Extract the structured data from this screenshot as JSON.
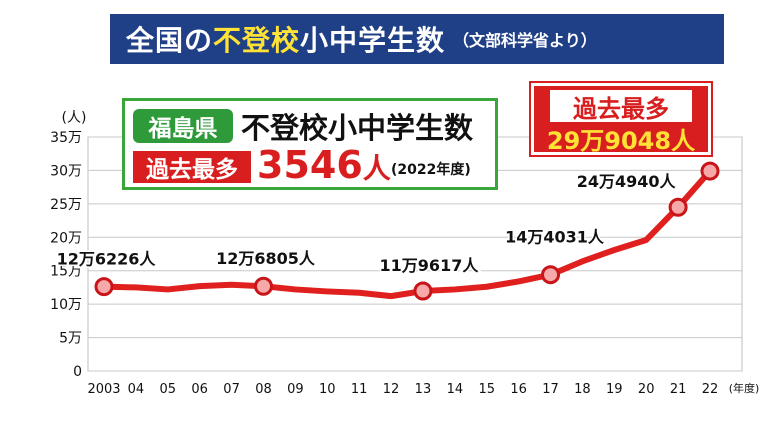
{
  "title": {
    "part1": "全国の",
    "part2": "不登校",
    "part3": "小中学生数",
    "source": "（文部科学省より）"
  },
  "info_box": {
    "prefecture": "福島県",
    "metric": "不登校小中学生数",
    "record_label": "過去最多",
    "record_number": "3546",
    "record_unit": "人",
    "record_year": "(2022年度)"
  },
  "callout": {
    "label": "過去最多",
    "value": "29万9048人"
  },
  "colors": {
    "title_bg": "#1f3f86",
    "highlight_yellow": "#ffe236",
    "line_red": "#e0201e",
    "marker_fill": "#f7a8a8",
    "badge_green": "#2e9a3a"
  },
  "chart_data": {
    "type": "line",
    "categories": [
      "2003",
      "04",
      "05",
      "06",
      "07",
      "08",
      "09",
      "10",
      "11",
      "12",
      "13",
      "14",
      "15",
      "16",
      "17",
      "18",
      "19",
      "20",
      "21",
      "22"
    ],
    "values": [
      126226,
      125000,
      122000,
      127000,
      129000,
      126805,
      122000,
      119000,
      117000,
      112000,
      119617,
      122000,
      126000,
      134000,
      144031,
      164000,
      181000,
      196000,
      244940,
      299048
    ],
    "marked_points": [
      {
        "category": "2003",
        "label": "12万6226人"
      },
      {
        "category": "08",
        "label": "12万6805人"
      },
      {
        "category": "13",
        "label": "11万9617人"
      },
      {
        "category": "17",
        "label": "14万4031人"
      },
      {
        "category": "21",
        "label": "24万4940人"
      },
      {
        "category": "22",
        "label": ""
      }
    ],
    "y_unit": "(人)",
    "x_unit": "(年度)",
    "yticks": [
      {
        "value": 0,
        "label": "0"
      },
      {
        "value": 50000,
        "label": "5万"
      },
      {
        "value": 100000,
        "label": "10万"
      },
      {
        "value": 150000,
        "label": "15万"
      },
      {
        "value": 200000,
        "label": "20万"
      },
      {
        "value": 250000,
        "label": "25万"
      },
      {
        "value": 300000,
        "label": "30万"
      },
      {
        "value": 350000,
        "label": "35万"
      }
    ],
    "ylim": [
      0,
      350000
    ],
    "grid": true
  }
}
